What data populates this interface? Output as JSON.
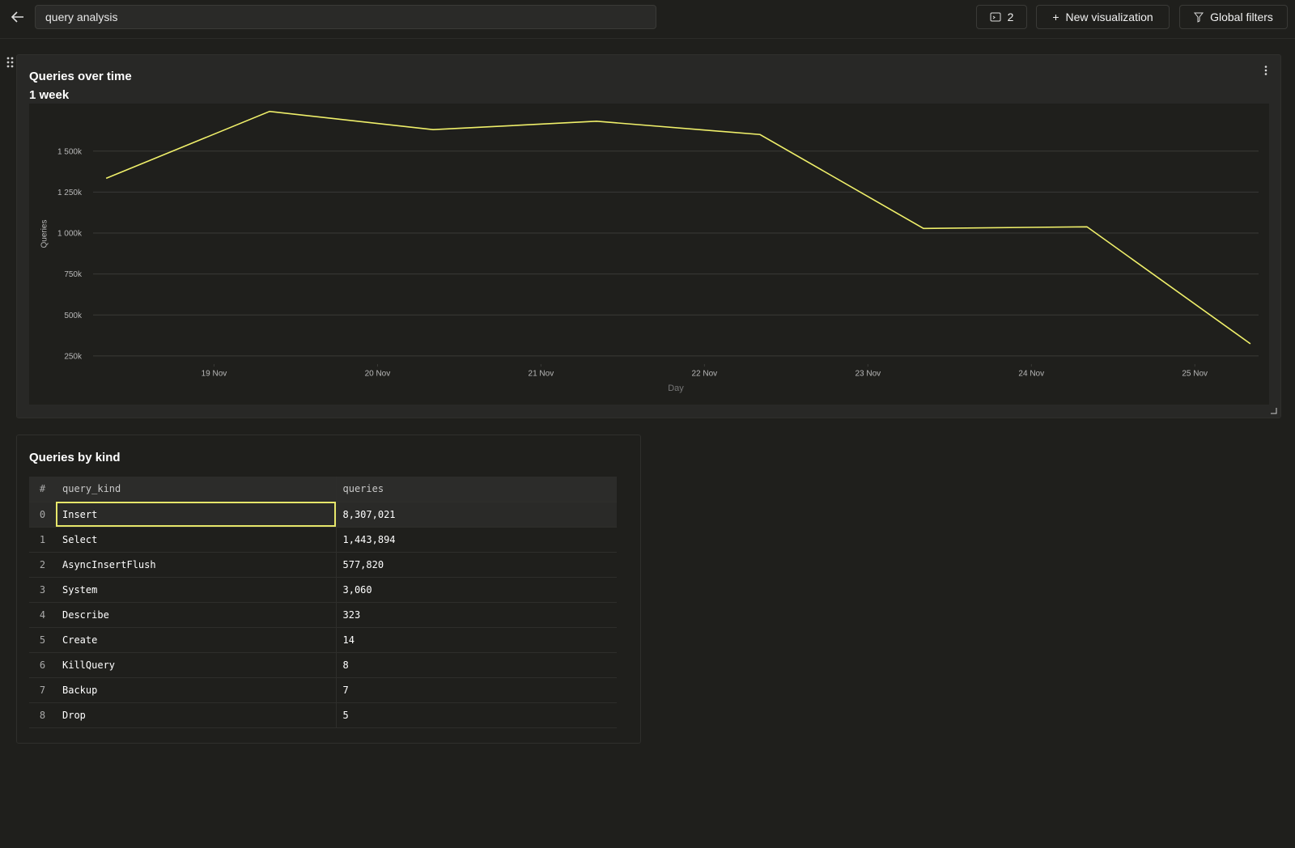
{
  "header": {
    "search": "query analysis",
    "count_button": "2",
    "new_button": "New visualization",
    "filters_button": "Global filters"
  },
  "chart_data": {
    "type": "line",
    "title": "Queries over time",
    "subtitle": "1 week",
    "x_label": "Day",
    "y_label": "Queries",
    "x": [
      18.34,
      19.34,
      20.34,
      21.34,
      22.34,
      23.34,
      24.34,
      25.34
    ],
    "values": [
      1334000,
      1742000,
      1631000,
      1682000,
      1601000,
      1028000,
      1038000,
      324000
    ],
    "color": "#f0f06a",
    "xlim": [
      18.26,
      25.39
    ],
    "xticks": [
      {
        "value": 19,
        "label": "19 Nov"
      },
      {
        "value": 20,
        "label": "20 Nov"
      },
      {
        "value": 21,
        "label": "21 Nov"
      },
      {
        "value": 22,
        "label": "22 Nov"
      },
      {
        "value": 23,
        "label": "23 Nov"
      },
      {
        "value": 24,
        "label": "24 Nov"
      },
      {
        "value": 25,
        "label": "25 Nov"
      }
    ],
    "ylim": [
      200000,
      1780000
    ],
    "yticks": [
      {
        "value": 250000,
        "label": "250k"
      },
      {
        "value": 500000,
        "label": "500k"
      },
      {
        "value": 750000,
        "label": "750k"
      },
      {
        "value": 1000000,
        "label": "1 000k"
      },
      {
        "value": 1250000,
        "label": "1 250k"
      },
      {
        "value": 1500000,
        "label": "1 500k"
      }
    ],
    "grid": true
  },
  "table": {
    "title": "Queries by kind",
    "columns": [
      "#",
      "query_kind",
      "queries"
    ],
    "rows": [
      [
        "0",
        "Insert",
        "8,307,021"
      ],
      [
        "1",
        "Select",
        "1,443,894"
      ],
      [
        "2",
        "AsyncInsertFlush",
        "577,820"
      ],
      [
        "3",
        "System",
        "3,060"
      ],
      [
        "4",
        "Describe",
        "323"
      ],
      [
        "5",
        "Create",
        "14"
      ],
      [
        "6",
        "KillQuery",
        "8"
      ],
      [
        "7",
        "Backup",
        "7"
      ],
      [
        "8",
        "Drop",
        "5"
      ]
    ]
  }
}
